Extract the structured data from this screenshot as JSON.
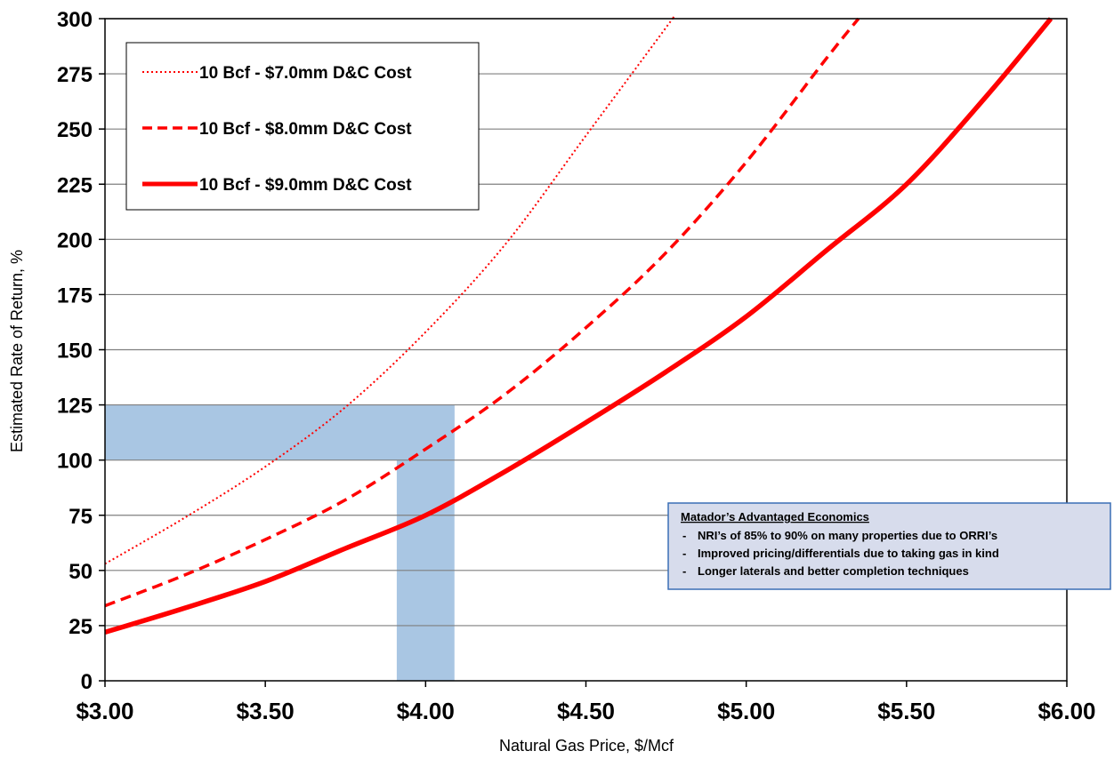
{
  "chart_data": {
    "type": "line",
    "title": "",
    "xlabel": "Natural Gas Price, $/Mcf",
    "ylabel": "Estimated Rate of Return, %",
    "xlim": [
      3.0,
      6.0
    ],
    "ylim": [
      0,
      300
    ],
    "grid": "horizontal",
    "x_ticks": [
      {
        "value": 3.0,
        "label": "$3.00"
      },
      {
        "value": 3.5,
        "label": "$3.50"
      },
      {
        "value": 4.0,
        "label": "$4.00"
      },
      {
        "value": 4.5,
        "label": "$4.50"
      },
      {
        "value": 5.0,
        "label": "$5.00"
      },
      {
        "value": 5.5,
        "label": "$5.50"
      },
      {
        "value": 6.0,
        "label": "$6.00"
      }
    ],
    "y_ticks": [
      {
        "value": 0,
        "label": "0"
      },
      {
        "value": 25,
        "label": "25"
      },
      {
        "value": 50,
        "label": "50"
      },
      {
        "value": 75,
        "label": "75"
      },
      {
        "value": 100,
        "label": "100"
      },
      {
        "value": 125,
        "label": "125"
      },
      {
        "value": 150,
        "label": "150"
      },
      {
        "value": 175,
        "label": "175"
      },
      {
        "value": 200,
        "label": "200"
      },
      {
        "value": 225,
        "label": "225"
      },
      {
        "value": 250,
        "label": "250"
      },
      {
        "value": 275,
        "label": "275"
      },
      {
        "value": 300,
        "label": "300"
      }
    ],
    "legend_position": "top-left",
    "series": [
      {
        "name": "10 Bcf - $7.0mm D&C Cost",
        "style": "dotted",
        "color": "#ff0000",
        "x": [
          3.0,
          3.25,
          3.5,
          3.75,
          4.0,
          4.25,
          4.5,
          4.75,
          4.77
        ],
        "y": [
          53,
          74,
          97,
          124,
          158,
          198,
          247,
          296,
          300
        ]
      },
      {
        "name": "10 Bcf - $8.0mm D&C Cost",
        "style": "dashed",
        "color": "#ff0000",
        "x": [
          3.0,
          3.25,
          3.5,
          3.75,
          4.0,
          4.25,
          4.5,
          4.75,
          5.0,
          5.25,
          5.35
        ],
        "y": [
          34,
          48,
          64,
          82,
          105,
          130,
          160,
          194,
          235,
          282,
          300
        ]
      },
      {
        "name": "10 Bcf - $9.0mm D&C Cost",
        "style": "solid",
        "color": "#ff0000",
        "x": [
          3.0,
          3.25,
          3.5,
          3.75,
          4.0,
          4.25,
          4.5,
          4.75,
          5.0,
          5.25,
          5.5,
          5.75,
          5.95
        ],
        "y": [
          22,
          33,
          45,
          60,
          75,
          95,
          117,
          140,
          165,
          195,
          225,
          265,
          300
        ]
      }
    ],
    "highlights": [
      {
        "x": [
          3.0,
          4.09
        ],
        "y": [
          100,
          125
        ],
        "color": "#a9c6e3"
      },
      {
        "x": [
          3.91,
          4.09
        ],
        "y": [
          0,
          125
        ],
        "color": "#a9c6e3"
      }
    ],
    "annotation": {
      "title": "Matador’s Advantaged Economics",
      "bullet": "-",
      "items": [
        "NRI’s of 85% to 90% on many properties due to ORRI’s",
        "Improved pricing/differentials due to taking gas in kind",
        "Longer laterals and better completion techniques"
      ],
      "border_color": "#3a6fb5",
      "fill_color": "#d7dcec"
    }
  }
}
